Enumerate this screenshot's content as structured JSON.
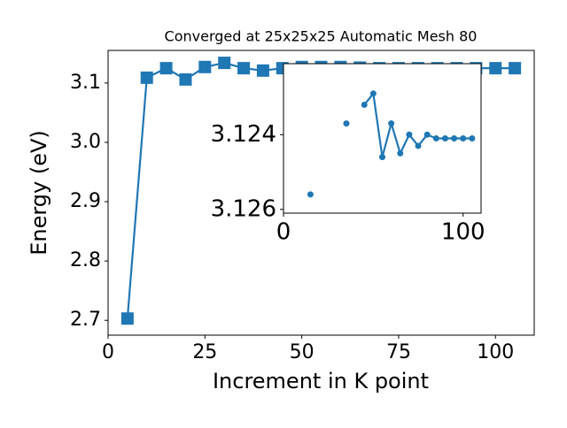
{
  "chart_data": [
    {
      "type": "line",
      "title": "Converged at 25x25x25 Automatic Mesh 80",
      "x_label": "Increment in K point",
      "y_label": "Energy (eV)",
      "x": [
        5,
        10,
        15,
        20,
        25,
        30,
        35,
        40,
        45,
        50,
        55,
        60,
        65,
        70,
        75,
        80,
        85,
        90,
        95,
        100,
        105
      ],
      "series": [
        {
          "color": "#1f77b4",
          "marker": "square",
          "values": [
            2.703,
            3.109,
            3.125,
            3.106,
            3.127,
            3.134,
            3.125,
            3.121,
            3.125,
            3.127,
            3.127,
            3.127,
            3.126,
            3.125,
            3.125,
            3.125,
            3.125,
            3.125,
            3.125,
            3.125,
            3.125
          ]
        }
      ],
      "xlim": [
        0,
        110
      ],
      "xticks": [
        0,
        25,
        50,
        75,
        100
      ],
      "ylim": [
        2.675,
        3.155
      ],
      "yticks": [
        2.7,
        2.8,
        2.9,
        {
          "value": 3.0,
          "label": "3.0"
        },
        3.1
      ]
    },
    {
      "type": "line",
      "x": [
        10,
        15,
        20,
        25,
        30,
        35,
        40,
        45,
        50,
        55,
        60,
        65,
        70,
        75,
        80,
        85,
        90,
        95,
        100,
        105
      ],
      "series": [
        {
          "color": "#1f77b4",
          "marker": "circle",
          "values": [
            null,
            3.1256,
            null,
            null,
            null,
            3.1237,
            null,
            3.1232,
            3.1229,
            3.1246,
            3.1237,
            3.1245,
            3.124,
            3.1243,
            3.124,
            3.1241,
            3.1241,
            3.1241,
            3.1241,
            3.1241
          ]
        }
      ],
      "xlim": [
        0,
        110
      ],
      "xticks": [
        0,
        100
      ],
      "ylim": [
        3.1261,
        3.1221
      ],
      "yticks": [
        3.124,
        3.126
      ]
    }
  ]
}
